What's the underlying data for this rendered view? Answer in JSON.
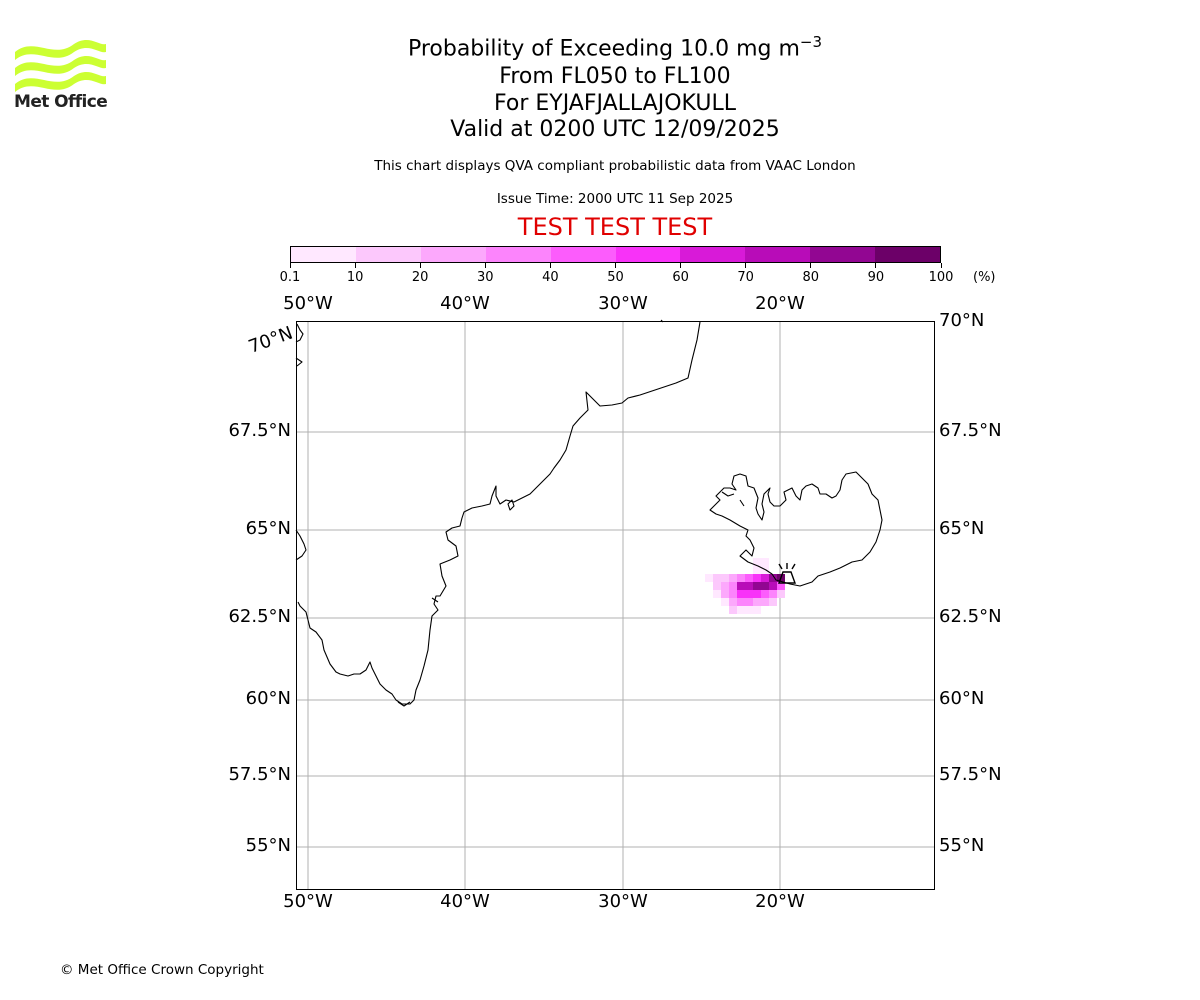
{
  "header": {
    "title_main": "Probability of Exceeding 10.0 mg m",
    "title_sup": "−3",
    "line2": "From FL050 to FL100",
    "line3": "For EYJAFJALLAJOKULL",
    "line4": "Valid at 0200 UTC 12/09/2025",
    "subtitle": "This chart displays QVA compliant probabilistic data from VAAC London",
    "issue_time": "Issue Time: 2000 UTC 11 Sep 2025",
    "test_banner": "TEST TEST TEST",
    "test_color": "#e00000"
  },
  "logo": {
    "text": "Met Office",
    "wave_color": "#ccff33"
  },
  "colorbar": {
    "ticks": [
      "0.1",
      "10",
      "20",
      "30",
      "40",
      "50",
      "60",
      "70",
      "80",
      "90",
      "100"
    ],
    "unit": "(%)",
    "colors": [
      "#ffe8ff",
      "#fcc8fc",
      "#fca8fc",
      "#fc84fc",
      "#fc5cfc",
      "#f832f8",
      "#d81ad8",
      "#b80cb8",
      "#920692",
      "#6c0068"
    ]
  },
  "map": {
    "lon_labels": [
      "50°W",
      "40°W",
      "30°W",
      "20°W"
    ],
    "lat_labels_left": [
      "70°N",
      "67.5°N",
      "65°N",
      "62.5°N",
      "60°N",
      "57.5°N",
      "55°N"
    ],
    "lat_labels_right": [
      "70°N",
      "67.5°N",
      "65°N",
      "62.5°N",
      "60°N",
      "57.5°N",
      "55°N"
    ],
    "volcano_name": "EYJAFJALLAJOKULL",
    "gridline_color": "#b0b0b0"
  },
  "footer": {
    "copyright": "© Met Office Crown Copyright"
  }
}
